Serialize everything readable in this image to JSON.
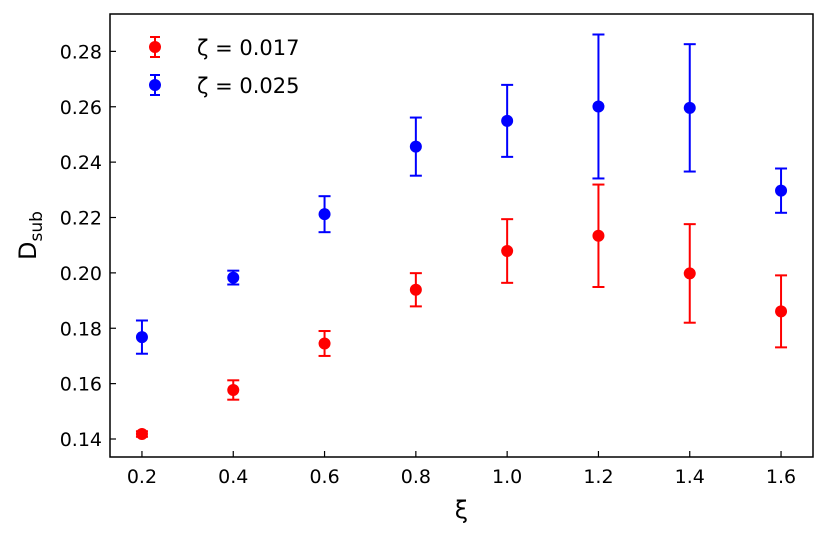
{
  "chart_data": {
    "type": "scatter",
    "xlabel": "ξ",
    "ylabel_main": "D",
    "ylabel_sub": "sub",
    "xlim": [
      0.13,
      1.67
    ],
    "ylim": [
      0.1335,
      0.2935
    ],
    "xticks": [
      0.2,
      0.4,
      0.6,
      0.8,
      1.0,
      1.2,
      1.4,
      1.6
    ],
    "xtick_labels": [
      "0.2",
      "0.4",
      "0.6",
      "0.8",
      "1.0",
      "1.2",
      "1.4",
      "1.6"
    ],
    "yticks": [
      0.14,
      0.16,
      0.18,
      0.2,
      0.22,
      0.24,
      0.26,
      0.28
    ],
    "ytick_labels": [
      "0.14",
      "0.16",
      "0.18",
      "0.20",
      "0.22",
      "0.24",
      "0.26",
      "0.28"
    ],
    "grid": false,
    "legend_position": "top-left",
    "series": [
      {
        "name": "ζ = 0.017",
        "color": "#ff0000",
        "x": [
          0.2,
          0.4,
          0.6,
          0.8,
          1.0,
          1.2,
          1.4,
          1.6
        ],
        "y": [
          0.1418,
          0.1577,
          0.1745,
          0.1939,
          0.2079,
          0.2134,
          0.1998,
          0.1861
        ],
        "yerr": [
          0.001,
          0.0035,
          0.0045,
          0.006,
          0.0115,
          0.0185,
          0.0178,
          0.013
        ]
      },
      {
        "name": "ζ = 0.025",
        "color": "#0000ff",
        "x": [
          0.2,
          0.4,
          0.6,
          0.8,
          1.0,
          1.2,
          1.4,
          1.6
        ],
        "y": [
          0.1768,
          0.1983,
          0.2212,
          0.2456,
          0.2549,
          0.2601,
          0.2596,
          0.2297
        ],
        "yerr": [
          0.006,
          0.0025,
          0.0065,
          0.0105,
          0.013,
          0.026,
          0.023,
          0.008
        ]
      }
    ]
  }
}
